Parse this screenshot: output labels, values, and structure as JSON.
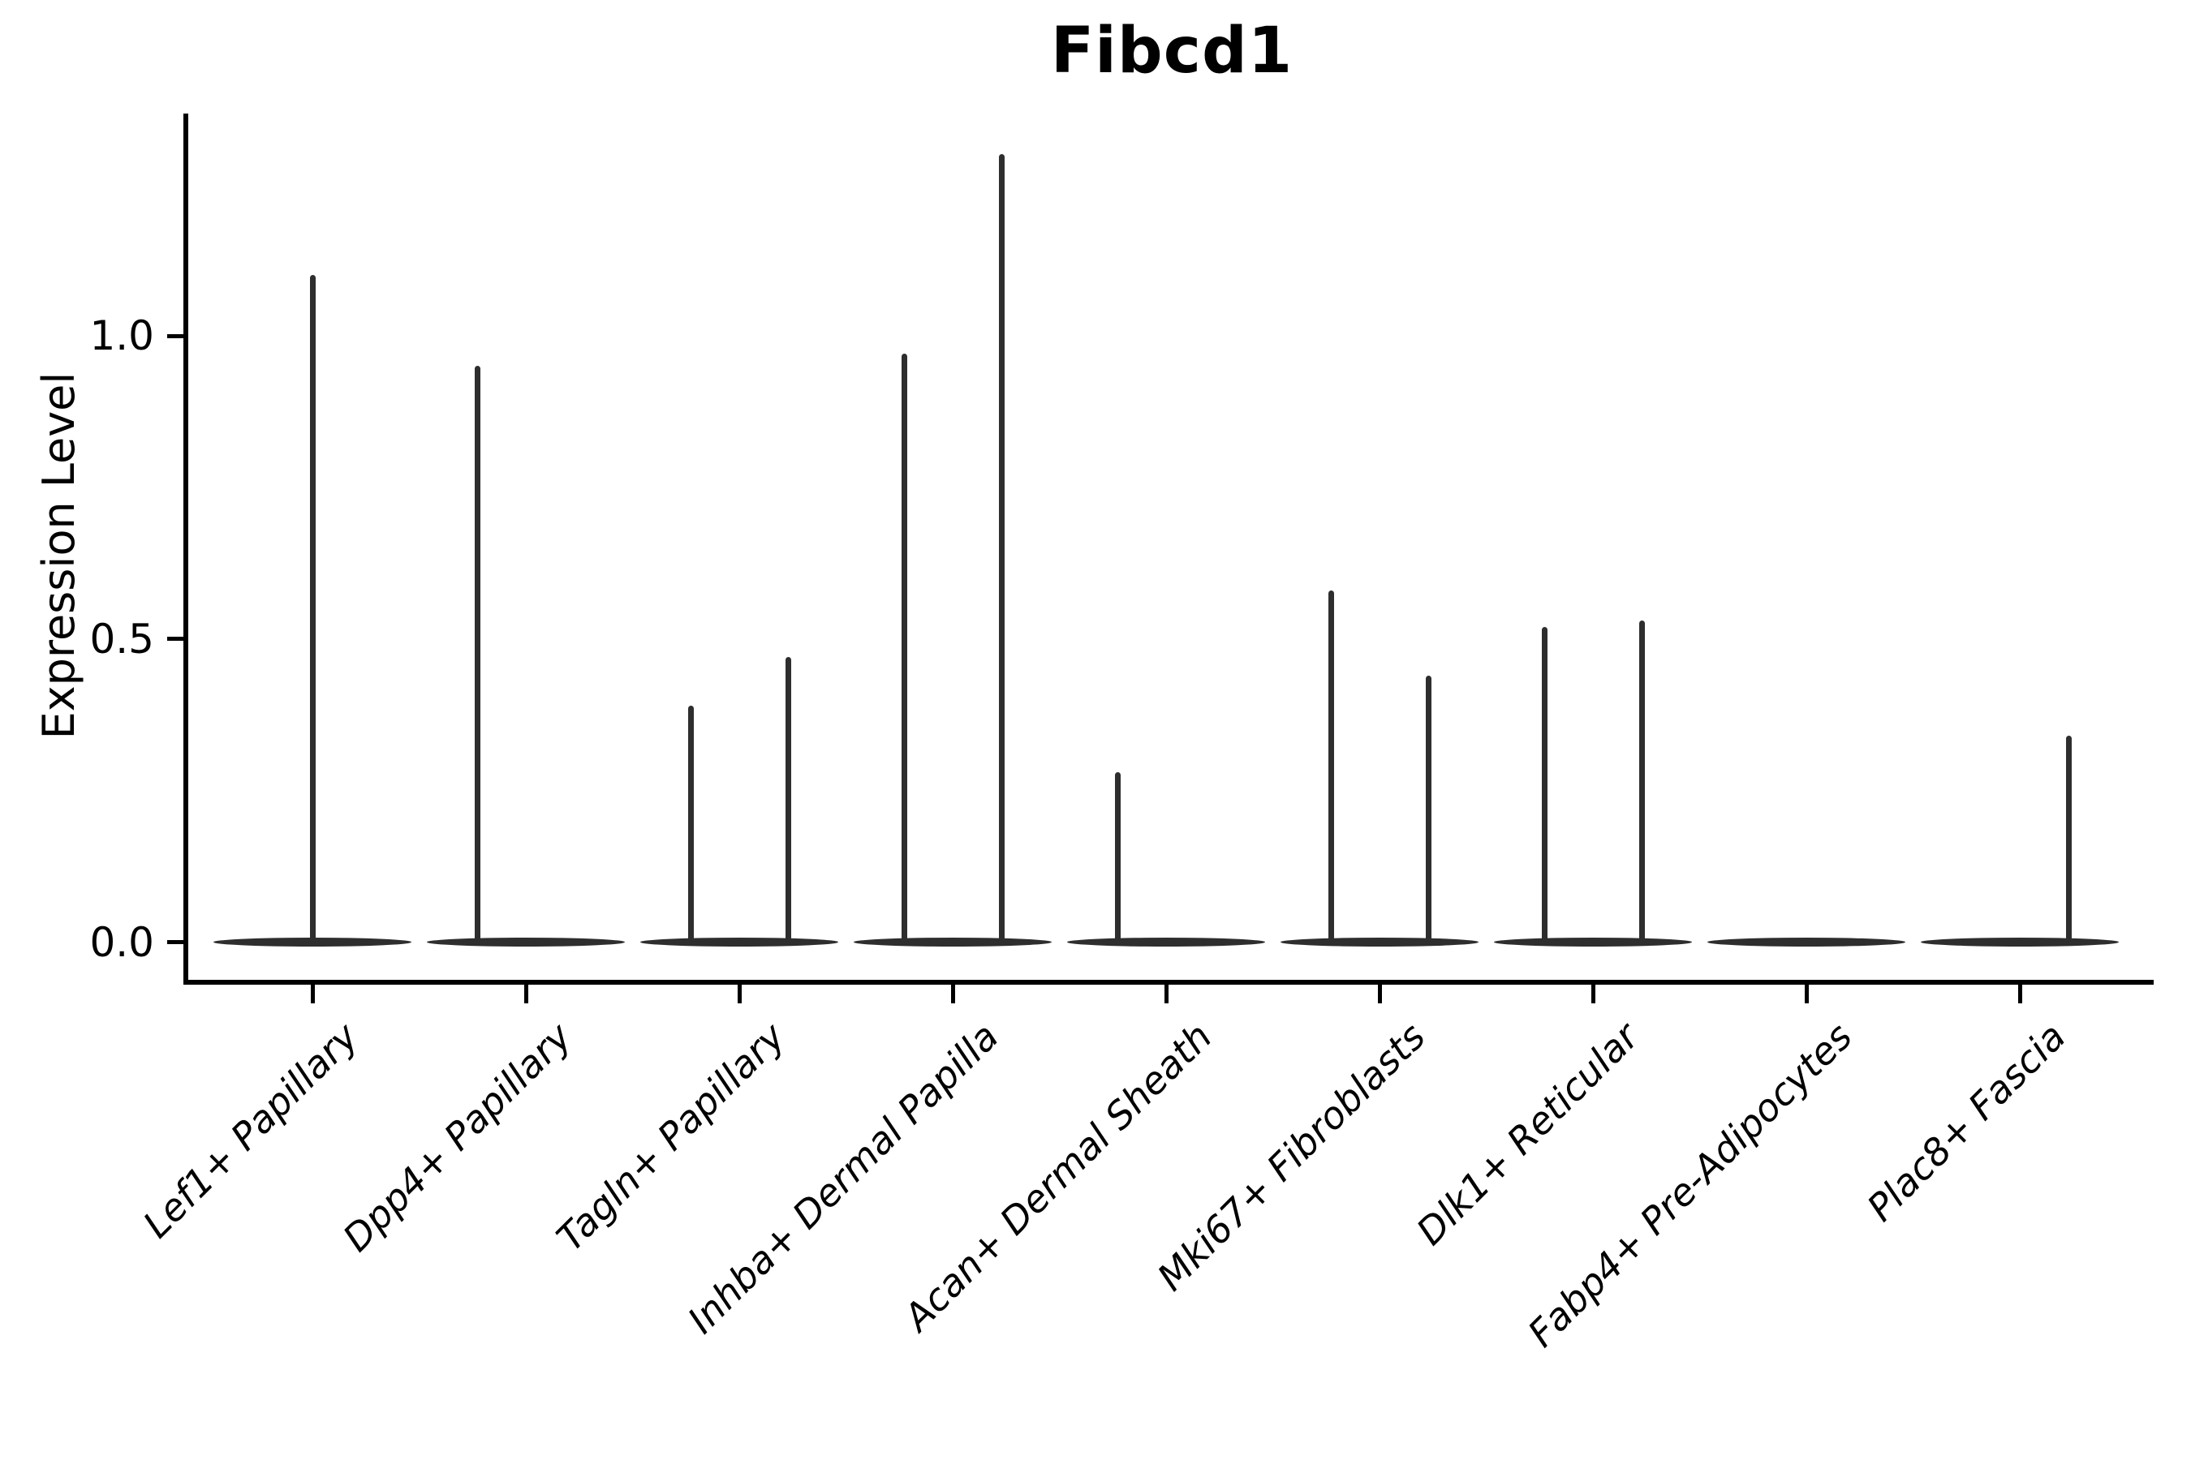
{
  "chart_data": {
    "type": "violin",
    "title": "Fibcd1",
    "ylabel": "Expression Level",
    "xlabel": "",
    "grid": false,
    "legend": "none",
    "ylim": [
      -0.07,
      1.37
    ],
    "yticks": [
      {
        "label": "1.0",
        "value": 1.0
      },
      {
        "label": "0.5",
        "value": 0.5
      },
      {
        "label": "0.0",
        "value": 0.0
      }
    ],
    "baseline_value": 0.0,
    "description": "Violin plot of Fibcd1 expression; each cell type shows a flat violin body at 0 with thin spikes rising to the maximum expression of each dodged group.",
    "categories": [
      {
        "label": "Lef1+ Papillary",
        "spikes": [
          {
            "position": "center",
            "max": 1.1
          }
        ]
      },
      {
        "label": "Dpp4+ Papillary",
        "spikes": [
          {
            "position": "left",
            "max": 0.95
          }
        ]
      },
      {
        "label": "Tagln+ Papillary",
        "spikes": [
          {
            "position": "left",
            "max": 0.39
          },
          {
            "position": "right",
            "max": 0.47
          }
        ]
      },
      {
        "label": "Inhba+ Dermal Papilla",
        "spikes": [
          {
            "position": "left",
            "max": 0.97
          },
          {
            "position": "right",
            "max": 1.3
          }
        ]
      },
      {
        "label": "Acan+ Dermal Sheath",
        "spikes": [
          {
            "position": "left",
            "max": 0.28
          }
        ]
      },
      {
        "label": "Mki67+ Fibroblasts",
        "spikes": [
          {
            "position": "left",
            "max": 0.58
          },
          {
            "position": "right",
            "max": 0.44
          }
        ]
      },
      {
        "label": "Dlk1+ Reticular",
        "spikes": [
          {
            "position": "left",
            "max": 0.52
          },
          {
            "position": "right",
            "max": 0.53
          }
        ]
      },
      {
        "label": "Fabp4+ Pre-Adipocytes",
        "spikes": []
      },
      {
        "label": "Plac8+ Fascia",
        "spikes": [
          {
            "position": "right",
            "max": 0.34
          }
        ]
      }
    ],
    "colors": {
      "violin": "#2e2e2e",
      "axis": "#000000",
      "background": "#ffffff"
    }
  }
}
